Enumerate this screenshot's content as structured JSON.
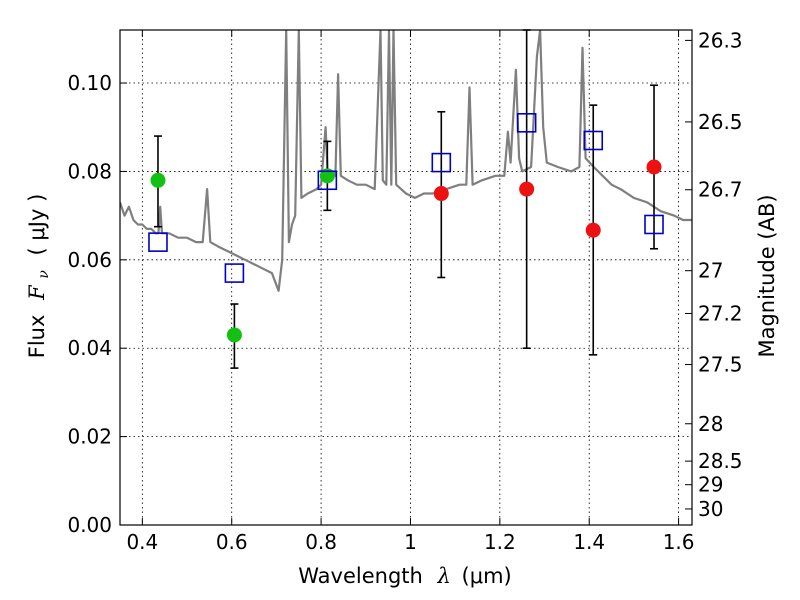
{
  "chart_data": {
    "type": "scatter",
    "title": "",
    "xlabel": "Wavelength",
    "xlabel_symbol": "λ",
    "xlabel_unit": "(μm)",
    "ylabel": "Flux",
    "ylabel_symbol": "F",
    "ylabel_subscript": "ν",
    "ylabel_unit": "( μJy )",
    "y2label": "Magnitude (AB)",
    "xlim": [
      0.35,
      1.63
    ],
    "ylim": [
      0.0,
      0.112
    ],
    "grid": true,
    "x_ticks": [
      0.4,
      0.6,
      0.8,
      1.0,
      1.2,
      1.4,
      1.6
    ],
    "x_tick_labels": [
      "0.4",
      "0.6",
      "0.8",
      "1",
      "1.2",
      "1.4",
      "1.6"
    ],
    "y_ticks": [
      0.0,
      0.02,
      0.04,
      0.06,
      0.08,
      0.1
    ],
    "y_tick_labels": [
      "0.00",
      "0.02",
      "0.04",
      "0.06",
      "0.08",
      "0.10"
    ],
    "y2_ticks": [
      {
        "label": "26.3",
        "mag": 26.3
      },
      {
        "label": "26.5",
        "mag": 26.5
      },
      {
        "label": "26.7",
        "mag": 26.7
      },
      {
        "label": "27",
        "mag": 27.0
      },
      {
        "label": "27.2",
        "mag": 27.2
      },
      {
        "label": "27.5",
        "mag": 27.5
      },
      {
        "label": "28",
        "mag": 28.0
      },
      {
        "label": "28.5",
        "mag": 28.5
      },
      {
        "label": "29",
        "mag": 29.0
      },
      {
        "label": "30",
        "mag": 30.0
      }
    ],
    "series": [
      {
        "marker": "circle",
        "color": "#13c113",
        "points": [
          {
            "x": 0.435,
            "y": 0.078,
            "yerr_low": 0.0675,
            "yerr_high": 0.088
          },
          {
            "x": 0.606,
            "y": 0.043,
            "yerr_low": 0.0355,
            "yerr_high": 0.05
          },
          {
            "x": 0.814,
            "y": 0.079,
            "yerr_low": 0.0712,
            "yerr_high": 0.0868
          }
        ]
      },
      {
        "marker": "circle",
        "color": "#ee1111",
        "points": [
          {
            "x": 1.069,
            "y": 0.075,
            "yerr_low": 0.056,
            "yerr_high": 0.0935
          },
          {
            "x": 1.26,
            "y": 0.076,
            "yerr_low": 0.04,
            "yerr_high": 0.112
          },
          {
            "x": 1.409,
            "y": 0.0667,
            "yerr_low": 0.0385,
            "yerr_high": 0.095
          },
          {
            "x": 1.545,
            "y": 0.081,
            "yerr_low": 0.0625,
            "yerr_high": 0.0995
          }
        ]
      },
      {
        "marker": "open-square",
        "color": "#0000cc",
        "points": [
          {
            "x": 0.435,
            "y": 0.064
          },
          {
            "x": 0.606,
            "y": 0.057
          },
          {
            "x": 0.814,
            "y": 0.078
          },
          {
            "x": 1.069,
            "y": 0.082
          },
          {
            "x": 1.26,
            "y": 0.091
          },
          {
            "x": 1.409,
            "y": 0.087
          },
          {
            "x": 1.545,
            "y": 0.068
          }
        ]
      }
    ],
    "model_spectrum": {
      "color": "#7f7f7f",
      "points": [
        [
          0.35,
          0.073
        ],
        [
          0.36,
          0.07
        ],
        [
          0.37,
          0.072
        ],
        [
          0.38,
          0.069
        ],
        [
          0.39,
          0.068
        ],
        [
          0.4,
          0.068
        ],
        [
          0.41,
          0.067
        ],
        [
          0.42,
          0.067
        ],
        [
          0.43,
          0.066
        ],
        [
          0.436,
          0.066
        ],
        [
          0.44,
          0.072
        ],
        [
          0.444,
          0.066
        ],
        [
          0.46,
          0.066
        ],
        [
          0.48,
          0.065
        ],
        [
          0.5,
          0.065
        ],
        [
          0.52,
          0.064
        ],
        [
          0.535,
          0.064
        ],
        [
          0.545,
          0.076
        ],
        [
          0.552,
          0.064
        ],
        [
          0.57,
          0.063
        ],
        [
          0.59,
          0.062
        ],
        [
          0.61,
          0.061
        ],
        [
          0.63,
          0.06
        ],
        [
          0.65,
          0.059
        ],
        [
          0.67,
          0.058
        ],
        [
          0.69,
          0.057
        ],
        [
          0.705,
          0.053
        ],
        [
          0.713,
          0.06
        ],
        [
          0.722,
          0.112
        ],
        [
          0.728,
          0.064
        ],
        [
          0.735,
          0.068
        ],
        [
          0.742,
          0.07
        ],
        [
          0.75,
          0.112
        ],
        [
          0.756,
          0.074
        ],
        [
          0.77,
          0.075
        ],
        [
          0.79,
          0.076
        ],
        [
          0.8,
          0.077
        ],
        [
          0.81,
          0.09
        ],
        [
          0.815,
          0.079
        ],
        [
          0.825,
          0.08
        ],
        [
          0.832,
          0.079
        ],
        [
          0.838,
          0.102
        ],
        [
          0.844,
          0.079
        ],
        [
          0.86,
          0.078
        ],
        [
          0.88,
          0.077
        ],
        [
          0.9,
          0.077
        ],
        [
          0.92,
          0.076
        ],
        [
          0.933,
          0.112
        ],
        [
          0.938,
          0.078
        ],
        [
          0.946,
          0.077
        ],
        [
          0.952,
          0.112
        ],
        [
          0.957,
          0.077
        ],
        [
          0.962,
          0.112
        ],
        [
          0.968,
          0.077
        ],
        [
          0.99,
          0.075
        ],
        [
          1.01,
          0.074
        ],
        [
          1.03,
          0.075
        ],
        [
          1.05,
          0.075
        ],
        [
          1.08,
          0.076
        ],
        [
          1.11,
          0.077
        ],
        [
          1.125,
          0.077
        ],
        [
          1.132,
          0.099
        ],
        [
          1.139,
          0.077
        ],
        [
          1.16,
          0.078
        ],
        [
          1.19,
          0.079
        ],
        [
          1.21,
          0.079
        ],
        [
          1.218,
          0.089
        ],
        [
          1.224,
          0.082
        ],
        [
          1.236,
          0.103
        ],
        [
          1.243,
          0.083
        ],
        [
          1.25,
          0.08
        ],
        [
          1.27,
          0.081
        ],
        [
          1.283,
          0.106
        ],
        [
          1.29,
          0.112
        ],
        [
          1.297,
          0.09
        ],
        [
          1.305,
          0.082
        ],
        [
          1.33,
          0.081
        ],
        [
          1.36,
          0.08
        ],
        [
          1.378,
          0.081
        ],
        [
          1.385,
          0.108
        ],
        [
          1.392,
          0.083
        ],
        [
          1.41,
          0.081
        ],
        [
          1.43,
          0.079
        ],
        [
          1.45,
          0.077
        ],
        [
          1.47,
          0.076
        ],
        [
          1.5,
          0.074
        ],
        [
          1.53,
          0.073
        ],
        [
          1.56,
          0.071
        ],
        [
          1.59,
          0.07
        ],
        [
          1.61,
          0.069
        ],
        [
          1.63,
          0.069
        ]
      ]
    }
  }
}
